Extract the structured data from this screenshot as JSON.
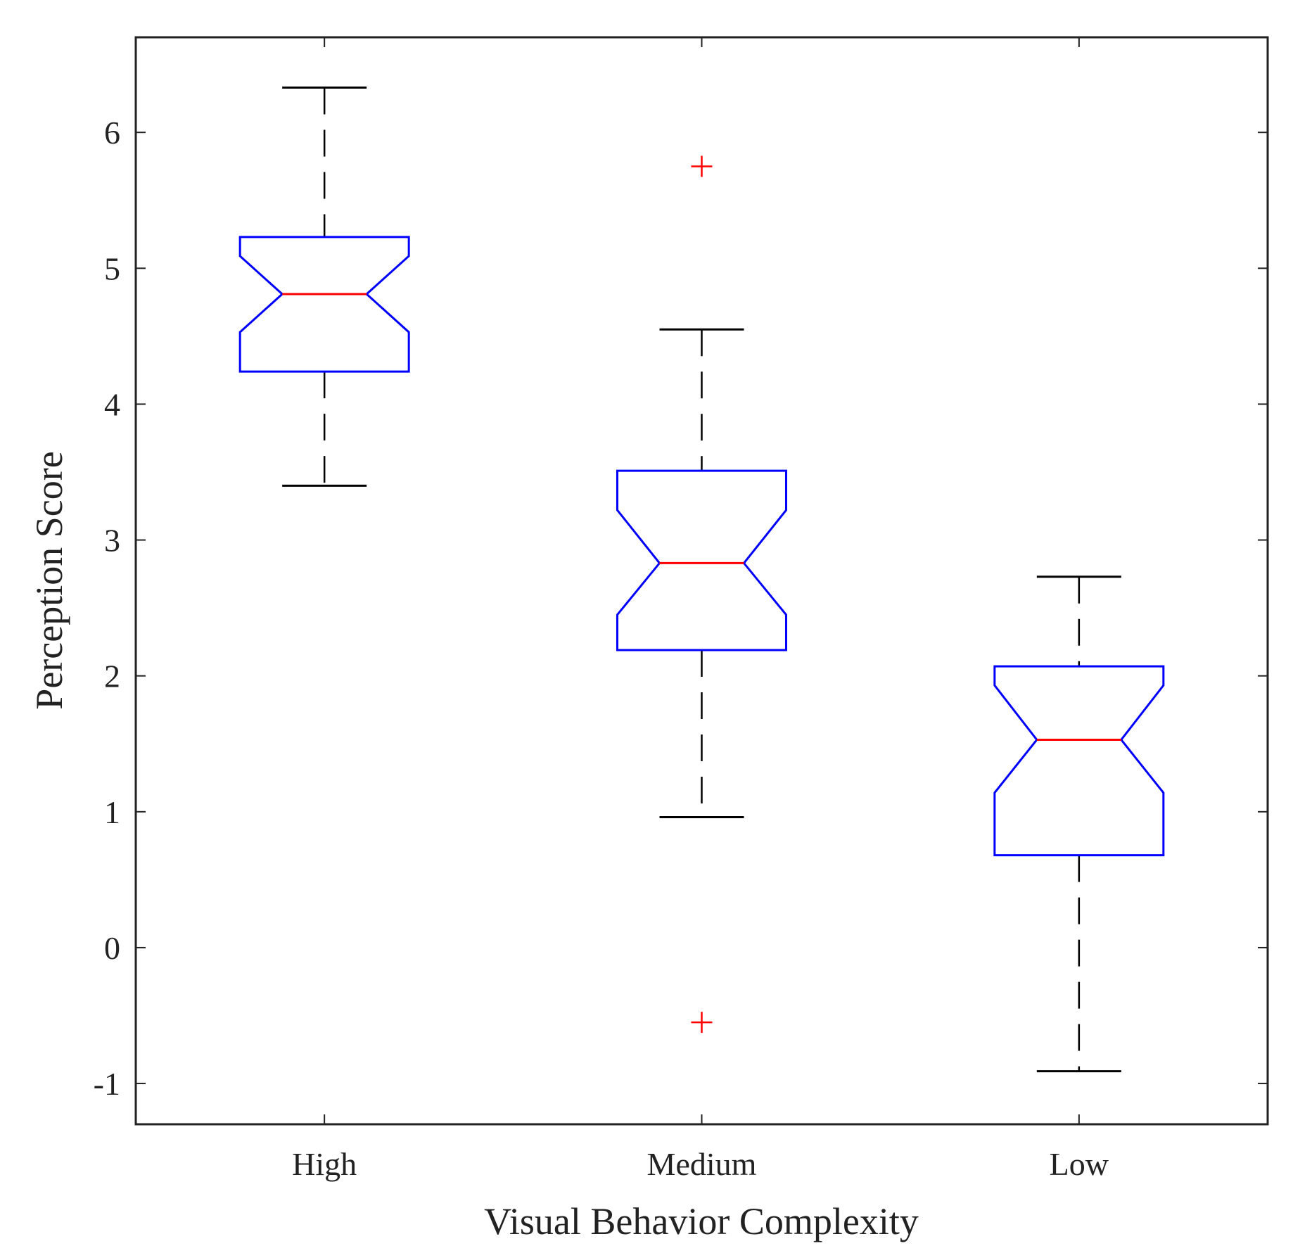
{
  "chart_data": {
    "type": "boxplot",
    "notched": true,
    "title": "",
    "xlabel": "Visual Behavior Complexity",
    "ylabel": "Perception Score",
    "ylim": [
      -1.3,
      6.7
    ],
    "yticks": [
      -1,
      0,
      1,
      2,
      3,
      4,
      5,
      6
    ],
    "ytick_labels": [
      "-1",
      "0",
      "1",
      "2",
      "3",
      "4",
      "5",
      "6"
    ],
    "categories": [
      "High",
      "Medium",
      "Low"
    ],
    "boxes": [
      {
        "label": "High",
        "whisker_low": 3.4,
        "q1": 4.24,
        "median": 4.81,
        "q3": 5.23,
        "whisker_high": 6.33,
        "notch_low": 4.53,
        "notch_high": 5.09,
        "outliers": []
      },
      {
        "label": "Medium",
        "whisker_low": 0.96,
        "q1": 2.19,
        "median": 2.83,
        "q3": 3.51,
        "whisker_high": 4.55,
        "notch_low": 2.45,
        "notch_high": 3.22,
        "outliers": [
          5.75,
          -0.55
        ]
      },
      {
        "label": "Low",
        "whisker_low": -0.91,
        "q1": 0.68,
        "median": 1.53,
        "q3": 2.07,
        "whisker_high": 2.73,
        "notch_low": 1.14,
        "notch_high": 1.93,
        "outliers": []
      }
    ],
    "colors": {
      "box": "#0000ff",
      "median": "#ff0000",
      "whisker": "#000000",
      "outlier": "#ff0000",
      "axis": "#222222"
    }
  }
}
